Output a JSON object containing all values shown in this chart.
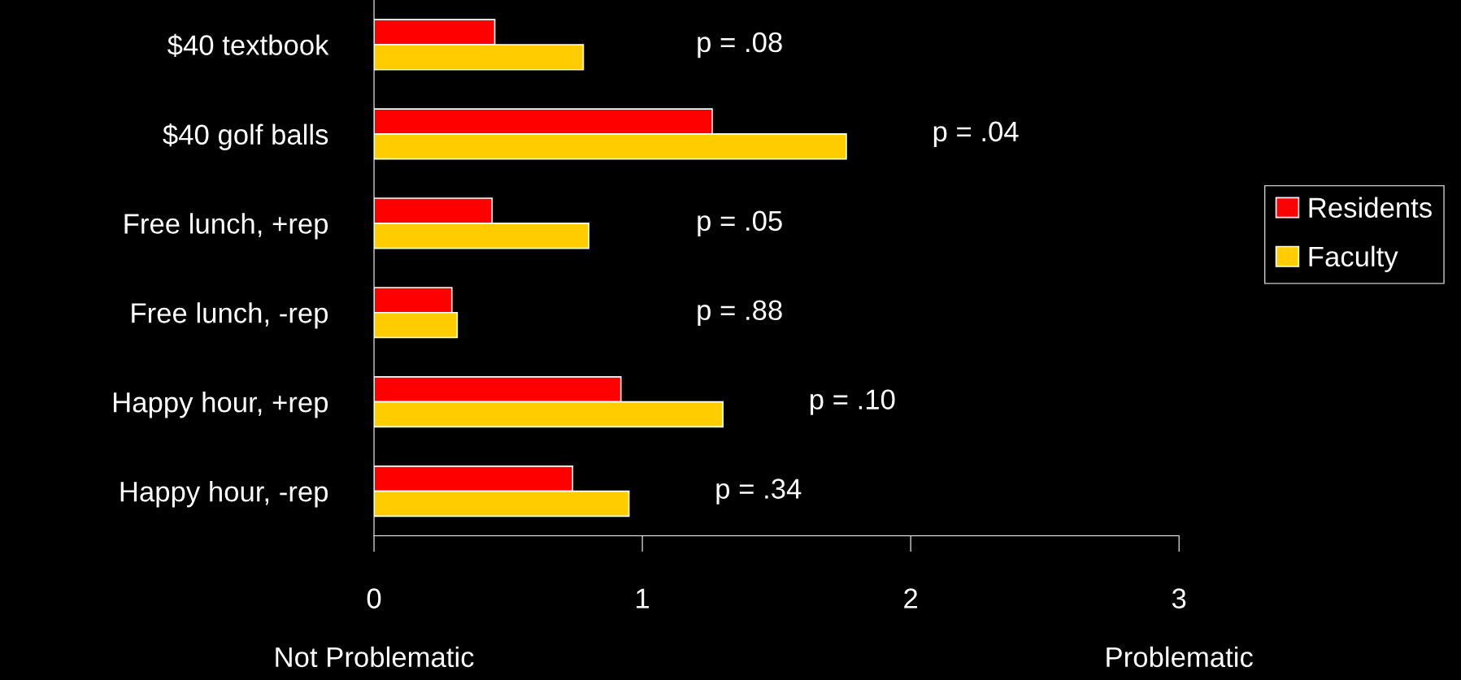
{
  "chart_data": {
    "type": "bar",
    "orientation": "horizontal",
    "categories": [
      "$40 textbook",
      "$40 golf balls",
      "Free lunch, +rep",
      "Free lunch, -rep",
      "Happy hour, +rep",
      "Happy hour, -rep"
    ],
    "series": [
      {
        "name": "Residents",
        "color": "#ff0000",
        "values": [
          0.45,
          1.26,
          0.44,
          0.29,
          0.92,
          0.74
        ]
      },
      {
        "name": "Faculty",
        "color": "#ffcc00",
        "values": [
          0.78,
          1.76,
          0.8,
          0.31,
          1.3,
          0.95
        ]
      }
    ],
    "xlim": [
      0,
      3
    ],
    "xticks": [
      0,
      1,
      2,
      3
    ],
    "grid": false,
    "legend": "right",
    "annotations": [
      "p = .08",
      "p = .04",
      "p = .05",
      "p = .88",
      "p = .10",
      "p = .34",
      "Not Problematic",
      "Problematic"
    ]
  }
}
